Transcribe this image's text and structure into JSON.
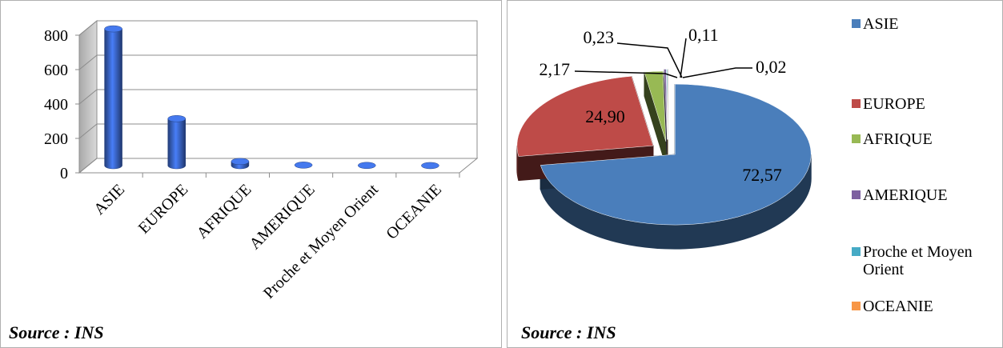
{
  "charts": {
    "left": {
      "source_label": "Source : INS"
    },
    "right": {
      "source_label": "Source : INS"
    }
  },
  "chart_data": [
    {
      "type": "bar",
      "categories": [
        "ASIE",
        "EUROPE",
        "AFRIQUE",
        "AMERIQUE",
        "Proche et Moyen Orient",
        "OCEANIE"
      ],
      "values": [
        795,
        273,
        24,
        3,
        1,
        0.2
      ],
      "ylim": [
        0,
        800
      ],
      "yticks": [
        "0",
        "200",
        "400",
        "600",
        "800"
      ],
      "grid": true,
      "style": "3d-cylinder",
      "color": "#3f6ed8"
    },
    {
      "type": "pie",
      "labels": [
        "ASIE",
        "EUROPE",
        "AFRIQUE",
        "AMERIQUE",
        "Proche et Moyen Orient",
        "OCEANIE"
      ],
      "values": [
        72.57,
        24.9,
        2.17,
        0.23,
        0.11,
        0.02
      ],
      "data_labels": [
        "72,57",
        "24,90",
        "2,17",
        "0,23",
        "0,11",
        "0,02"
      ],
      "colors": [
        "#4a7ebb",
        "#be4b48",
        "#98b954",
        "#7d60a0",
        "#46aac5",
        "#f79646"
      ],
      "legend_position": "right",
      "style": "3d-exploded"
    }
  ]
}
